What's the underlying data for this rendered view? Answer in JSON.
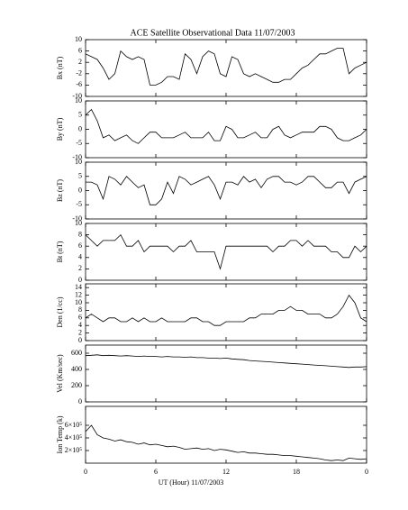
{
  "chart_data": [
    {
      "type": "line",
      "title": "ACE Satellite Observational Data   11/07/2003",
      "ylabel": "Bx (nT)",
      "ylim": [
        -10,
        10
      ],
      "yticks": [
        -10,
        -6,
        -2,
        2,
        6,
        10
      ],
      "color": "#000000",
      "x": [
        0,
        0.5,
        1,
        1.5,
        2,
        2.5,
        3,
        3.5,
        4,
        4.5,
        5,
        5.5,
        6,
        6.5,
        7,
        7.5,
        8,
        8.5,
        9,
        9.5,
        10,
        10.5,
        11,
        11.5,
        12,
        12.5,
        13,
        13.5,
        14,
        14.5,
        15,
        15.5,
        16,
        16.5,
        17,
        17.5,
        18,
        18.5,
        19,
        19.5,
        20,
        20.5,
        21,
        21.5,
        22,
        22.5,
        23,
        23.5,
        24
      ],
      "values": [
        5,
        4,
        3,
        0,
        -4,
        -2,
        6,
        4,
        3,
        4,
        3,
        -6,
        -6,
        -5,
        -3,
        -3,
        -4,
        5,
        3,
        -2,
        4,
        6,
        5,
        -2,
        -3,
        4,
        3,
        -2,
        -3,
        -2,
        -3,
        -4,
        -5,
        -5,
        -4,
        -4,
        -2,
        0,
        1,
        3,
        5,
        5,
        6,
        7,
        7,
        -2,
        0,
        1,
        2
      ]
    },
    {
      "type": "line",
      "ylabel": "By (nT)",
      "ylim": [
        -10,
        10
      ],
      "yticks": [
        -10,
        -5,
        0,
        5,
        10
      ],
      "color": "#000000",
      "x": [
        0,
        0.5,
        1,
        1.5,
        2,
        2.5,
        3,
        3.5,
        4,
        4.5,
        5,
        5.5,
        6,
        6.5,
        7,
        7.5,
        8,
        8.5,
        9,
        9.5,
        10,
        10.5,
        11,
        11.5,
        12,
        12.5,
        13,
        13.5,
        14,
        14.5,
        15,
        15.5,
        16,
        16.5,
        17,
        17.5,
        18,
        18.5,
        19,
        19.5,
        20,
        20.5,
        21,
        21.5,
        22,
        22.5,
        23,
        23.5,
        24
      ],
      "values": [
        5,
        7,
        3,
        -3,
        -2,
        -4,
        -3,
        -2,
        -4,
        -5,
        -3,
        -1,
        -1,
        -3,
        -3,
        -3,
        -2,
        -1,
        -3,
        -3,
        -3,
        -1,
        -4,
        -4,
        1,
        0,
        -3,
        -3,
        -2,
        -1,
        -3,
        -3,
        0,
        1,
        -2,
        -3,
        -2,
        -1,
        -1,
        -1,
        1,
        1,
        0,
        -3,
        -4,
        -4,
        -3,
        -2,
        0
      ]
    },
    {
      "type": "line",
      "ylabel": "Bz (nT)",
      "ylim": [
        -10,
        10
      ],
      "yticks": [
        -10,
        -5,
        0,
        5,
        10
      ],
      "color": "#000000",
      "x": [
        0,
        0.5,
        1,
        1.5,
        2,
        2.5,
        3,
        3.5,
        4,
        4.5,
        5,
        5.5,
        6,
        6.5,
        7,
        7.5,
        8,
        8.5,
        9,
        9.5,
        10,
        10.5,
        11,
        11.5,
        12,
        12.5,
        13,
        13.5,
        14,
        14.5,
        15,
        15.5,
        16,
        16.5,
        17,
        17.5,
        18,
        18.5,
        19,
        19.5,
        20,
        20.5,
        21,
        21.5,
        22,
        22.5,
        23,
        23.5,
        24
      ],
      "values": [
        3,
        3,
        2,
        -3,
        5,
        4,
        2,
        5,
        3,
        1,
        2,
        -5,
        -5,
        -3,
        3,
        -1,
        5,
        4,
        2,
        3,
        4,
        5,
        2,
        -3,
        3,
        3,
        2,
        5,
        3,
        4,
        1,
        4,
        5,
        5,
        3,
        3,
        2,
        3,
        5,
        5,
        3,
        1,
        1,
        3,
        3,
        -1,
        3,
        4,
        5
      ]
    },
    {
      "type": "line",
      "ylabel": "Bt (nT)",
      "ylim": [
        0,
        10
      ],
      "yticks": [
        0,
        2,
        4,
        6,
        8,
        10
      ],
      "color": "#000000",
      "x": [
        0,
        0.5,
        1,
        1.5,
        2,
        2.5,
        3,
        3.5,
        4,
        4.5,
        5,
        5.5,
        6,
        6.5,
        7,
        7.5,
        8,
        8.5,
        9,
        9.5,
        10,
        10.5,
        11,
        11.5,
        12,
        12.5,
        13,
        13.5,
        14,
        14.5,
        15,
        15.5,
        16,
        16.5,
        17,
        17.5,
        18,
        18.5,
        19,
        19.5,
        20,
        20.5,
        21,
        21.5,
        22,
        22.5,
        23,
        23.5,
        24
      ],
      "values": [
        8,
        7,
        6,
        7,
        7,
        7,
        8,
        6,
        6,
        7,
        5,
        6,
        6,
        6,
        6,
        5,
        6,
        6,
        7,
        5,
        5,
        5,
        5,
        2,
        6,
        6,
        6,
        6,
        6,
        6,
        6,
        6,
        5,
        6,
        6,
        7,
        7,
        6,
        7,
        6,
        6,
        6,
        5,
        5,
        4,
        4,
        6,
        5,
        6
      ]
    },
    {
      "type": "line",
      "ylabel": "Den (1/cc)",
      "ylim": [
        0,
        15
      ],
      "yticks": [
        0,
        2,
        4,
        6,
        8,
        10,
        12,
        14
      ],
      "color": "#000000",
      "x": [
        0,
        0.5,
        1,
        1.5,
        2,
        2.5,
        3,
        3.5,
        4,
        4.5,
        5,
        5.5,
        6,
        6.5,
        7,
        7.5,
        8,
        8.5,
        9,
        9.5,
        10,
        10.5,
        11,
        11.5,
        12,
        12.5,
        13,
        13.5,
        14,
        14.5,
        15,
        15.5,
        16,
        16.5,
        17,
        17.5,
        18,
        18.5,
        19,
        19.5,
        20,
        20.5,
        21,
        21.5,
        22,
        22.5,
        23,
        23.5,
        24
      ],
      "values": [
        6,
        7,
        6,
        5,
        6,
        6,
        5,
        5,
        6,
        5,
        6,
        5,
        5,
        6,
        5,
        5,
        5,
        5,
        6,
        6,
        5,
        5,
        4,
        4,
        5,
        5,
        5,
        5,
        6,
        6,
        7,
        7,
        7,
        8,
        8,
        9,
        8,
        8,
        7,
        7,
        7,
        6,
        6,
        7,
        9,
        12,
        10,
        6,
        5
      ]
    },
    {
      "type": "line",
      "ylabel": "Vel (Km/sec)",
      "ylim": [
        0,
        700
      ],
      "yticks": [
        0,
        200,
        400,
        600
      ],
      "color": "#000000",
      "x": [
        0,
        0.5,
        1,
        1.5,
        2,
        2.5,
        3,
        3.5,
        4,
        4.5,
        5,
        5.5,
        6,
        6.5,
        7,
        7.5,
        8,
        8.5,
        9,
        9.5,
        10,
        10.5,
        11,
        11.5,
        12,
        12.5,
        13,
        13.5,
        14,
        14.5,
        15,
        15.5,
        16,
        16.5,
        17,
        17.5,
        18,
        18.5,
        19,
        19.5,
        20,
        20.5,
        21,
        21.5,
        22,
        22.5,
        23,
        23.5,
        24
      ],
      "values": [
        570,
        575,
        580,
        570,
        575,
        570,
        565,
        570,
        565,
        560,
        565,
        560,
        560,
        555,
        560,
        555,
        555,
        550,
        555,
        545,
        545,
        540,
        540,
        535,
        540,
        530,
        525,
        520,
        510,
        505,
        500,
        495,
        490,
        485,
        480,
        475,
        470,
        465,
        460,
        455,
        450,
        445,
        440,
        435,
        430,
        425,
        430,
        430,
        435
      ]
    },
    {
      "type": "line",
      "ylabel": "Ion Temp (k)",
      "xlabel": "UT (Hour)  11/07/2003",
      "ylim": [
        0,
        900000
      ],
      "yticks": [
        {
          "value": 200000,
          "label": "2×10⁵"
        },
        {
          "value": 400000,
          "label": "4×10⁵"
        },
        {
          "value": 600000,
          "label": "6×10⁵"
        }
      ],
      "xlim": [
        0,
        24
      ],
      "xticks": [
        0,
        6,
        12,
        18,
        {
          "value": 24,
          "label": "0"
        }
      ],
      "color": "#000000",
      "x": [
        0,
        0.5,
        1,
        1.5,
        2,
        2.5,
        3,
        3.5,
        4,
        4.5,
        5,
        5.5,
        6,
        6.5,
        7,
        7.5,
        8,
        8.5,
        9,
        9.5,
        10,
        10.5,
        11,
        11.5,
        12,
        12.5,
        13,
        13.5,
        14,
        14.5,
        15,
        15.5,
        16,
        16.5,
        17,
        17.5,
        18,
        18.5,
        19,
        19.5,
        20,
        20.5,
        21,
        21.5,
        22,
        22.5,
        23,
        23.5,
        24
      ],
      "values": [
        500000,
        600000,
        450000,
        400000,
        380000,
        350000,
        370000,
        340000,
        330000,
        300000,
        320000,
        290000,
        300000,
        280000,
        260000,
        270000,
        250000,
        220000,
        230000,
        240000,
        220000,
        230000,
        200000,
        220000,
        210000,
        190000,
        170000,
        180000,
        160000,
        160000,
        150000,
        140000,
        140000,
        130000,
        120000,
        120000,
        110000,
        100000,
        90000,
        80000,
        70000,
        50000,
        40000,
        50000,
        40000,
        80000,
        70000,
        60000,
        70000
      ]
    }
  ]
}
